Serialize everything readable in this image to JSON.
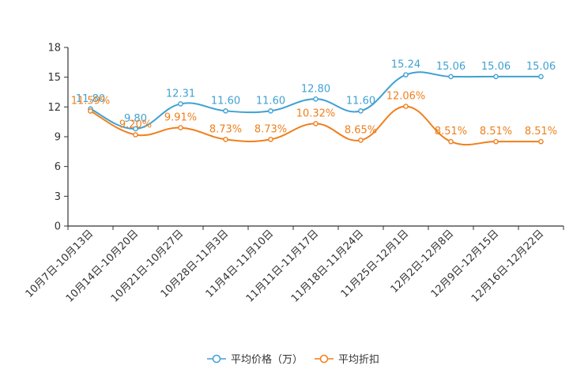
{
  "chart_data": {
    "type": "line",
    "title": "",
    "xlabel": "",
    "ylabel": "",
    "ylim": [
      0,
      18
    ],
    "yticks": [
      0,
      3,
      6,
      9,
      12,
      15,
      18
    ],
    "grid": false,
    "legend_position": "bottom-center",
    "categories": [
      "10月7日-10月13日",
      "10月14日-10月20日",
      "10月21日-10月27日",
      "10月28日-11月3日",
      "11月4日-11月10日",
      "11月11日-11月17日",
      "11月18日-11月24日",
      "11月25日-12月1日",
      "12月2日-12月8日",
      "12月9日-12月15日",
      "12月16日-12月22日"
    ],
    "series": [
      {
        "name": "平均价格（万）",
        "color": "#3fa1d2",
        "values": [
          11.8,
          9.8,
          12.31,
          11.6,
          11.6,
          12.8,
          11.6,
          15.24,
          15.06,
          15.06,
          15.06
        ],
        "labels": [
          "11.80",
          "9.80",
          "12.31",
          "11.60",
          "11.60",
          "12.80",
          "11.60",
          "15.24",
          "15.06",
          "15.06",
          "15.06"
        ]
      },
      {
        "name": "平均折扣",
        "color": "#f07f1b",
        "values": [
          11.59,
          9.2,
          9.91,
          8.73,
          8.73,
          10.32,
          8.65,
          12.06,
          8.51,
          8.51,
          8.51
        ],
        "labels": [
          "11.59%",
          "9.20%",
          "9.91%",
          "8.73%",
          "8.73%",
          "10.32%",
          "8.65%",
          "12.06%",
          "8.51%",
          "8.51%",
          "8.51%"
        ]
      }
    ]
  }
}
